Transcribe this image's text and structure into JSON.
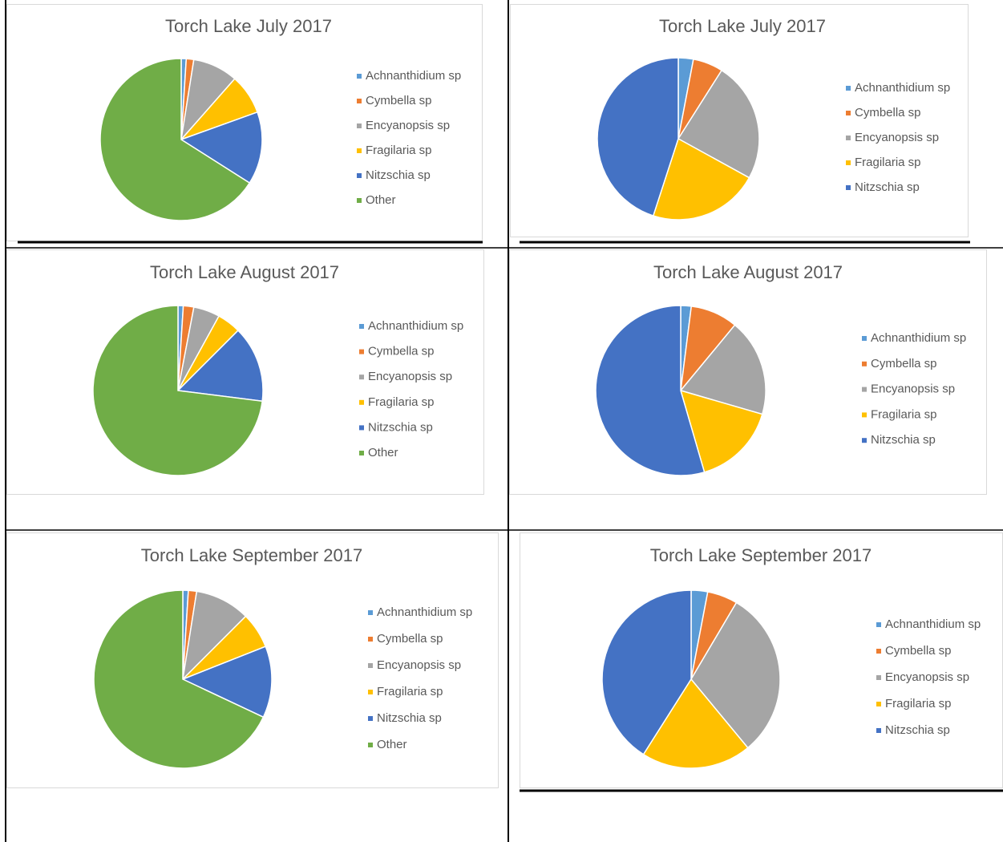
{
  "chart_data": [
    {
      "type": "pie",
      "title": "Torch Lake July 2017",
      "categories": [
        "Achnanthidium sp",
        "Cymbella sp",
        "Encyanopsis sp",
        "Fragilaria sp",
        "Nitzschia sp",
        "Other"
      ],
      "values": [
        1,
        1.5,
        9,
        8,
        14.5,
        66
      ],
      "colors": [
        "#5b9bd5",
        "#ed7d31",
        "#a5a5a5",
        "#ffc000",
        "#4472c4",
        "#70ad47"
      ]
    },
    {
      "type": "pie",
      "title": "Torch Lake July 2017",
      "categories": [
        "Achnanthidium sp",
        "Cymbella sp",
        "Encyanopsis sp",
        "Fragilaria sp",
        "Nitzschia sp"
      ],
      "values": [
        3,
        6,
        24,
        22,
        45
      ],
      "colors": [
        "#5b9bd5",
        "#ed7d31",
        "#a5a5a5",
        "#ffc000",
        "#4472c4"
      ]
    },
    {
      "type": "pie",
      "title": "Torch Lake August 2017",
      "categories": [
        "Achnanthidium sp",
        "Cymbella sp",
        "Encyanopsis sp",
        "Fragilaria sp",
        "Nitzschia sp",
        "Other"
      ],
      "values": [
        1,
        2,
        5,
        4.5,
        14.5,
        73
      ],
      "colors": [
        "#5b9bd5",
        "#ed7d31",
        "#a5a5a5",
        "#ffc000",
        "#4472c4",
        "#70ad47"
      ]
    },
    {
      "type": "pie",
      "title": "Torch Lake August 2017",
      "categories": [
        "Achnanthidium sp",
        "Cymbella sp",
        "Encyanopsis sp",
        "Fragilaria sp",
        "Nitzschia sp"
      ],
      "values": [
        2,
        9,
        18.5,
        16,
        54.5
      ],
      "colors": [
        "#5b9bd5",
        "#ed7d31",
        "#a5a5a5",
        "#ffc000",
        "#4472c4"
      ]
    },
    {
      "type": "pie",
      "title": "Torch Lake September 2017",
      "categories": [
        "Achnanthidium sp",
        "Cymbella sp",
        "Encyanopsis sp",
        "Fragilaria sp",
        "Nitzschia sp",
        "Other"
      ],
      "values": [
        1,
        1.5,
        10,
        6.5,
        13,
        68
      ],
      "colors": [
        "#5b9bd5",
        "#ed7d31",
        "#a5a5a5",
        "#ffc000",
        "#4472c4",
        "#70ad47"
      ]
    },
    {
      "type": "pie",
      "title": "Torch Lake September 2017",
      "categories": [
        "Achnanthidium sp",
        "Cymbella sp",
        "Encyanopsis sp",
        "Fragilaria sp",
        "Nitzschia sp"
      ],
      "values": [
        3,
        5.5,
        30.5,
        20,
        41
      ],
      "colors": [
        "#5b9bd5",
        "#ed7d31",
        "#a5a5a5",
        "#ffc000",
        "#4472c4"
      ]
    }
  ]
}
